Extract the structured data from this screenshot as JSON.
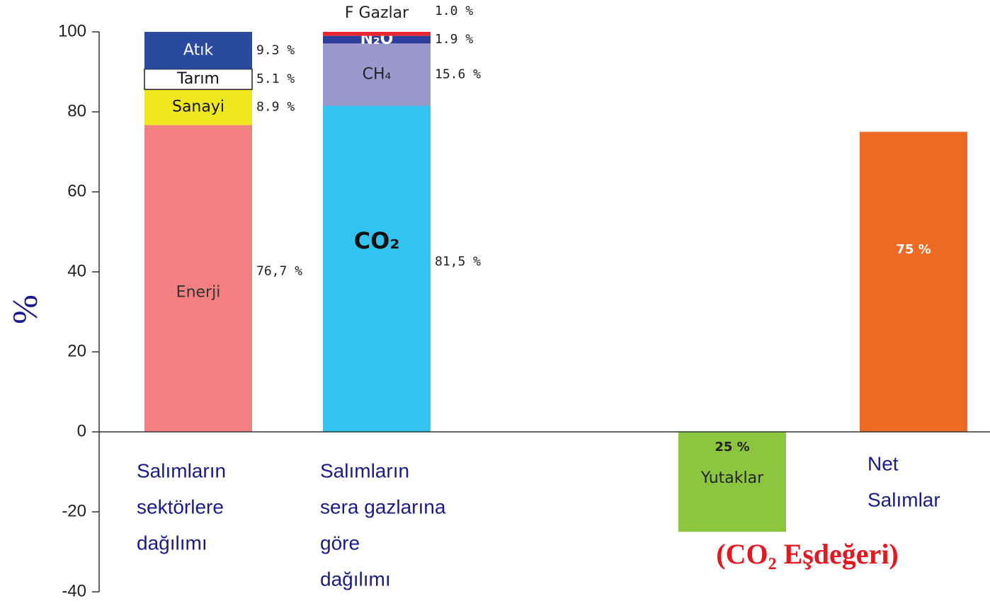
{
  "chart_data": {
    "type": "stacked_bar",
    "y_label": "%",
    "ylim": [
      -40,
      100
    ],
    "yticks": [
      -40,
      -20,
      0,
      20,
      40,
      60,
      80,
      100
    ],
    "annotation": "(CO₂ Eşdeğeri)",
    "bars": [
      {
        "label_lines": [
          "Salımların",
          "sektörlere",
          "dağılımı"
        ],
        "segments": [
          {
            "name": "Enerji",
            "value": 76.7,
            "value_label": "76,7 %",
            "color": "#f38080",
            "label_color": "#333333"
          },
          {
            "name": "Sanayi",
            "value": 8.9,
            "value_label": "8.9 %",
            "color": "#f0e81e",
            "label_color": "#111111"
          },
          {
            "name": "Tarım",
            "value": 5.1,
            "value_label": "5.1 %",
            "color": "#ffffff",
            "label_color": "#111111"
          },
          {
            "name": "Atık",
            "value": 9.3,
            "value_label": "9.3 %",
            "color": "#2a4aa0",
            "label_color": "#ffffff"
          }
        ]
      },
      {
        "label_lines": [
          "Salımların",
          "sera gazlarına",
          "göre",
          "dağılımı"
        ],
        "segments": [
          {
            "name": "CO₂",
            "value": 81.5,
            "value_label": "81,5 %",
            "color": "#33c3f0",
            "label_color": "#111111"
          },
          {
            "name": "CH₄",
            "value": 15.6,
            "value_label": "15.6 %",
            "color": "#9a98cc",
            "label_color": "#222222"
          },
          {
            "name": "N₂O",
            "value": 1.9,
            "value_label": "1.9 %",
            "color": "#2c3d9a",
            "label_color": "#ffffff"
          },
          {
            "name": "F Gazlar",
            "value": 1.0,
            "value_label": "1.0 %",
            "color": "#e8262e",
            "label_color": "#222222"
          }
        ]
      },
      {
        "segments": [
          {
            "name": "Yutaklar",
            "value": -25,
            "value_label": "25 %",
            "color": "#8cc63e",
            "label_color": "#222222"
          }
        ]
      },
      {
        "label_lines": [
          "Net",
          "Salımlar"
        ],
        "segments": [
          {
            "value": 75,
            "value_label": "75 %",
            "color": "#ee6a24",
            "label_color": "#ffffff"
          }
        ]
      }
    ]
  }
}
